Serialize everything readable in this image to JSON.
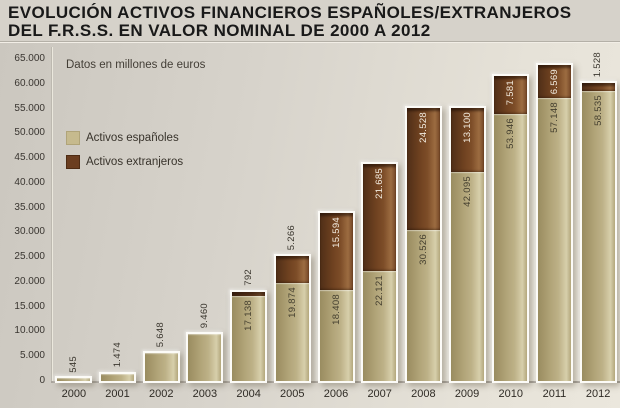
{
  "title": {
    "line1": "EVOLUCIÓN ACTIVOS FINANCIEROS ESPAÑOLES/EXTRANJEROS",
    "line2": "DEL F.R.S.S. EN VALOR NOMINAL DE 2000 A 2012"
  },
  "subtitle": "Datos en millones de euros",
  "colors": {
    "background": "#d6d2ca",
    "plot_background_left": "#cbc7bf",
    "plot_background_right": "#ebe7dd",
    "bar_espanoles": "#b7ab7f",
    "bar_extranjeros": "#6f431f",
    "axis_line": "#a7a29a",
    "title_text": "#191919",
    "label_on_beige": "#443f2f",
    "label_on_brown": "#f2ebdf"
  },
  "chart_data": {
    "type": "bar",
    "stacked": true,
    "title": "EVOLUCIÓN ACTIVOS FINANCIEROS ESPAÑOLES/EXTRANJEROS DEL F.R.S.S. EN VALOR NOMINAL DE 2000 A 2012",
    "subtitle": "Datos en millones de euros",
    "unit": "millones de euros",
    "grid": false,
    "legend_position": "top-left",
    "ylim": [
      0,
      65000
    ],
    "ytick_interval": 5000,
    "ytick_labels": [
      "0",
      "5.000",
      "10.000",
      "15.000",
      "20.000",
      "25.000",
      "30.000",
      "35.000",
      "40.000",
      "45.000",
      "50.000",
      "55.000",
      "60.000",
      "65.000"
    ],
    "categories": [
      "2000",
      "2001",
      "2002",
      "2003",
      "2004",
      "2005",
      "2006",
      "2007",
      "2008",
      "2009",
      "2010",
      "2011",
      "2012"
    ],
    "series": [
      {
        "name": "Activos españoles",
        "slug": "espanoles",
        "color": "#b7ab7f",
        "values": [
          545,
          1474,
          5648,
          9460,
          17138,
          19874,
          18408,
          22121,
          30526,
          42095,
          53946,
          57148,
          58535
        ],
        "labels": [
          "545",
          "1.474",
          "5.648",
          "9.460",
          "17.138",
          "19.874",
          "18.408",
          "22.121",
          "30.526",
          "42.095",
          "53.946",
          "57.148",
          "58.535"
        ],
        "label_placement": [
          "above",
          "above",
          "above",
          "above",
          "inside",
          "inside",
          "inside",
          "inside",
          "inside",
          "inside",
          "inside",
          "inside",
          "inside"
        ]
      },
      {
        "name": "Activos extranjeros",
        "slug": "extranjeros",
        "color": "#6f431f",
        "values": [
          0,
          0,
          0,
          0,
          792,
          5266,
          15594,
          21685,
          24528,
          13100,
          7581,
          6569,
          1528
        ],
        "labels": [
          "",
          "",
          "",
          "",
          "792",
          "5.266",
          "15.594",
          "21.685",
          "24.528",
          "13.100",
          "7.581",
          "6.569",
          "1.528"
        ],
        "label_placement": [
          "none",
          "none",
          "none",
          "none",
          "above",
          "above",
          "inside",
          "inside",
          "inside",
          "inside",
          "inside",
          "inside",
          "above"
        ]
      }
    ]
  }
}
